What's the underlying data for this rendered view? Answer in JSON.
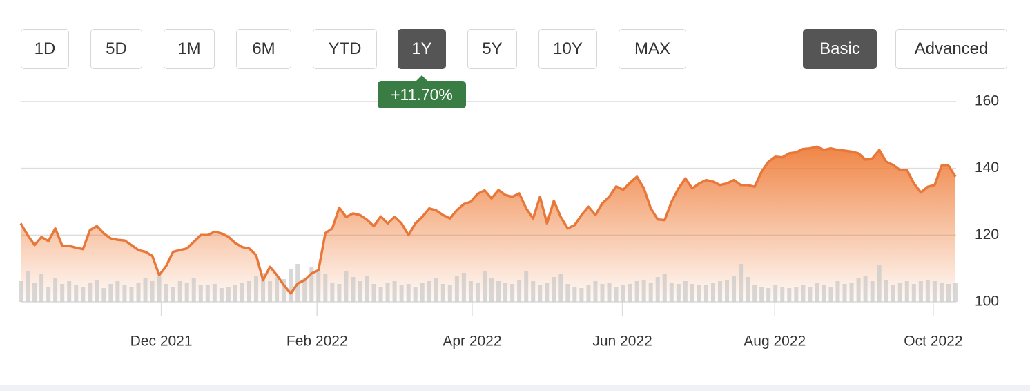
{
  "range_buttons": [
    "1D",
    "5D",
    "1M",
    "6M",
    "YTD",
    "1Y",
    "5Y",
    "10Y",
    "MAX"
  ],
  "selected_range": 5,
  "mode_buttons": [
    "Basic",
    "Advanced"
  ],
  "selected_mode": 0,
  "change_badge": "+11.70%",
  "chart_data": {
    "type": "line",
    "color": "#e8773a",
    "values": [
      123.5,
      120,
      117,
      119.4,
      118.2,
      122,
      116.8,
      116.8,
      116.2,
      115.8,
      121.5,
      122.7,
      120.5,
      119,
      118.6,
      118.4,
      117,
      115.5,
      115,
      113.8,
      108,
      110.7,
      115,
      115.5,
      116,
      118,
      120,
      120,
      121,
      120.5,
      119.5,
      117.6,
      116.4,
      116,
      114,
      106.5,
      110.5,
      108,
      105,
      102.5,
      105.5,
      106.5,
      108.5,
      109.5,
      120.6,
      122,
      128.2,
      125.4,
      126.5,
      126,
      124.6,
      122.7,
      125.6,
      123.5,
      125.5,
      123.5,
      120,
      123.5,
      125.5,
      128,
      127.4,
      126,
      125,
      127.5,
      129.3,
      130,
      132.4,
      133.4,
      131,
      133.5,
      132,
      131.5,
      132.5,
      128,
      125,
      131.5,
      123.5,
      130.3,
      125.4,
      122,
      123,
      126,
      128.5,
      126,
      129.5,
      131.5,
      134.6,
      133.6,
      135.7,
      137.5,
      134,
      128,
      124.7,
      124.5,
      130,
      134,
      137,
      134,
      135.5,
      136.5,
      136,
      135,
      135.5,
      136.5,
      135,
      135,
      134.5,
      139,
      142,
      143.5,
      143.3,
      144.5,
      144.8,
      145.8,
      146,
      146.5,
      145.5,
      146,
      145.5,
      145.3,
      145,
      144.5,
      142.6,
      143,
      145.5,
      142,
      141,
      139.5,
      139.5,
      135.5,
      132.8,
      134.5,
      135,
      140.8,
      140.8,
      137.5
    ],
    "volume": {
      "color": "#c8c8c8",
      "vlim": [
        0,
        100
      ],
      "values": [
        30,
        45,
        28,
        40,
        22,
        35,
        26,
        30,
        25,
        22,
        28,
        32,
        20,
        26,
        30,
        24,
        22,
        28,
        34,
        30,
        38,
        26,
        22,
        30,
        28,
        34,
        25,
        24,
        26,
        20,
        22,
        24,
        28,
        30,
        38,
        42,
        30,
        36,
        33,
        48,
        55,
        34,
        50,
        45,
        40,
        28,
        26,
        44,
        36,
        30,
        38,
        26,
        22,
        28,
        30,
        24,
        26,
        22,
        28,
        30,
        34,
        26,
        25,
        38,
        42,
        30,
        28,
        45,
        34,
        30,
        28,
        26,
        32,
        44,
        30,
        24,
        28,
        36,
        40,
        26,
        22,
        20,
        24,
        30,
        26,
        28,
        22,
        24,
        26,
        30,
        32,
        28,
        36,
        40,
        28,
        26,
        30,
        26,
        24,
        25,
        28,
        30,
        32,
        38,
        55,
        36,
        25,
        22,
        20,
        24,
        22,
        20,
        22,
        24,
        22,
        28,
        24,
        22,
        30,
        26,
        28,
        34,
        38,
        30,
        54,
        32,
        24,
        28,
        30,
        26,
        30,
        32,
        30,
        28,
        26,
        28
      ]
    },
    "ylim": [
      100,
      160
    ],
    "yticks": [
      100,
      120,
      140,
      160
    ],
    "xlim": [
      0,
      135
    ],
    "xticks": [
      {
        "value": 20.3,
        "label": "Dec 2021"
      },
      {
        "value": 42.8,
        "label": "Feb 2022"
      },
      {
        "value": 65.2,
        "label": "Apr 2022"
      },
      {
        "value": 86.9,
        "label": "Jun 2022"
      },
      {
        "value": 108.9,
        "label": "Aug 2022"
      },
      {
        "value": 131.8,
        "label": "Oct 2022"
      }
    ],
    "grid": true
  }
}
